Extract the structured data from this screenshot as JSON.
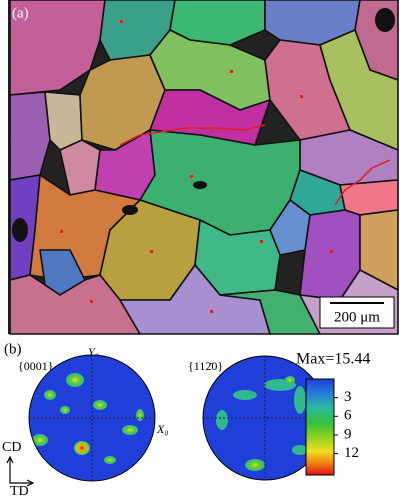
{
  "panel_a": {
    "label": "(a)",
    "scale_bar": "200 μm"
  },
  "panel_b": {
    "label": "(b)",
    "pole_figures": [
      {
        "title": "{0001}",
        "y_axis": "Y₀",
        "x_axis": "X₀"
      },
      {
        "title": "{112̄0}"
      }
    ],
    "colorbar": {
      "max_label": "Max=15.44",
      "lim": [
        0,
        15.44
      ],
      "ticks": [
        3,
        6,
        9,
        12
      ]
    },
    "directions": {
      "cd": "CD",
      "td": "TD"
    }
  }
}
